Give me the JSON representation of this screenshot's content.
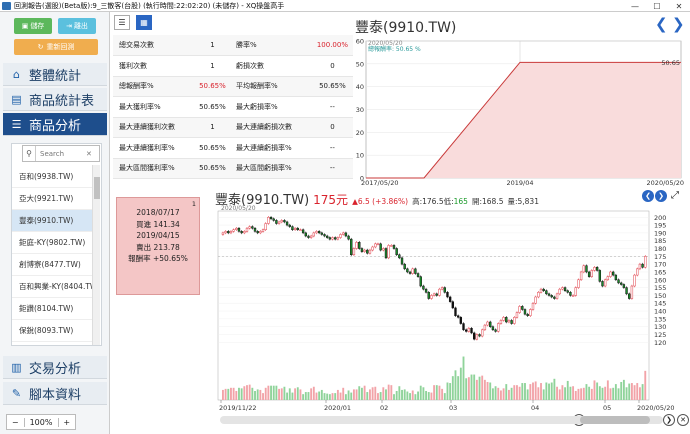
{
  "window": {
    "title": "回測報告(選股)(Beta版):9_三散客(台股) (執行時間:22:02:20) (未儲存) - XQ操盤高手",
    "controls": [
      "—",
      "☐",
      "✕"
    ]
  },
  "sidebar": {
    "save_label": "儲存",
    "exit_label": "離出",
    "reset_label": "重新回測",
    "nav": [
      {
        "label": "整體統計",
        "icon": "home-icon"
      },
      {
        "label": "商品統計表",
        "icon": "book-icon"
      },
      {
        "label": "商品分析",
        "icon": "list-icon"
      },
      {
        "label": "交易分析",
        "icon": "bar-chart-icon"
      },
      {
        "label": "腳本資料",
        "icon": "pencil-icon"
      }
    ],
    "search_placeholder": "Search",
    "stocks": [
      "百和(9938.TW)",
      "亞大(9921.TW)",
      "豐泰(9910.TW)",
      "鉅庭-KY(9802.TW)",
      "創博寮(8477.TW)",
      "百和興業-KY(8404.TW)",
      "鉅讚(8104.TW)",
      "保銳(8093.TW)"
    ],
    "selected_index": 2,
    "zoom_minus": "−",
    "zoom_value": "100%",
    "zoom_plus": "+"
  },
  "stats": [
    [
      "總交易次數",
      "1",
      "勝率%",
      "100.00%"
    ],
    [
      "獲利次數",
      "1",
      "虧損次數",
      "0"
    ],
    [
      "總報酬率%",
      "50.65%",
      "平均報酬率%",
      "50.65%"
    ],
    [
      "最大獲利率%",
      "50.65%",
      "最大虧損率%",
      "--"
    ],
    [
      "最大連續獲利次數",
      "1",
      "最大連續虧損次數",
      "0"
    ],
    [
      "最大連續獲利率%",
      "50.65%",
      "最大連續虧損率%",
      "--"
    ],
    [
      "最大區間獲利率%",
      "50.65%",
      "最大區間虧損率%",
      "--"
    ]
  ],
  "equity": {
    "title": "豐泰(9910.TW)",
    "date_label": "2020/05/20",
    "legend": "總報酬率: 50.65 %",
    "end_value_label": "50.65",
    "xticks": [
      "2017/05/20",
      "2019/04",
      "2020/05/20"
    ],
    "yticks": [
      "0",
      "10",
      "20",
      "30",
      "40",
      "50",
      "60"
    ]
  },
  "trade": {
    "count": "1",
    "buy_date": "2018/07/17",
    "buy_text": "買進 141.34",
    "sell_date": "2019/04/15",
    "sell_text": "賣出 213.78",
    "return_text": "報酬率 +50.65%"
  },
  "quote": {
    "name": "豐泰(9910.TW)",
    "price": "175元",
    "change": "▲6.5 (+3.86%)",
    "high": "高:176.5",
    "low_label": "低:",
    "low_value": "165",
    "open": "開:168.5",
    "volume": "量:5,831"
  },
  "chart_data": [
    {
      "type": "line",
      "title": "",
      "x": [
        "2017/05/20",
        "2018/07/17",
        "2019/04/15",
        "2020/05/20"
      ],
      "series": [
        {
          "name": "總報酬率",
          "values": [
            0,
            0,
            50.65,
            50.65
          ]
        }
      ],
      "ylim": [
        0,
        60
      ],
      "xlabel": "",
      "ylabel": ""
    },
    {
      "type": "candlestick",
      "title": "",
      "date_label": "2020/05/20",
      "xticks": [
        "2019/11/22",
        "2020/01",
        "02",
        "03",
        "04",
        "05",
        "2020/05/20"
      ],
      "yticks": [
        120,
        125,
        130,
        135,
        140,
        145,
        150,
        155,
        160,
        165,
        170,
        175,
        180,
        185,
        190,
        195,
        200
      ],
      "ylim": [
        117,
        204
      ],
      "last_close": 175,
      "closes": [
        190,
        191,
        190,
        191,
        192,
        193,
        191,
        190,
        191,
        193,
        194,
        193,
        191,
        190,
        191,
        192,
        196,
        200,
        199,
        198,
        196,
        197,
        198,
        197,
        195,
        194,
        192,
        193,
        192,
        192,
        190,
        188,
        187,
        188,
        190,
        191,
        190,
        189,
        188,
        187,
        186,
        187,
        186,
        187,
        189,
        190,
        188,
        186,
        176,
        180,
        184,
        180,
        178,
        179,
        177,
        179,
        181,
        183,
        183,
        179,
        180,
        174,
        182,
        182,
        180,
        176,
        174,
        170,
        167,
        165,
        164,
        167,
        164,
        162,
        156,
        154,
        152,
        148,
        150,
        151,
        150,
        154,
        155,
        152,
        149,
        146,
        142,
        137,
        136,
        132,
        128,
        127,
        129,
        126,
        122,
        125,
        124,
        128,
        131,
        133,
        130,
        128,
        127,
        132,
        134,
        136,
        133,
        134,
        132,
        136,
        139,
        143,
        141,
        138,
        137,
        141,
        145,
        149,
        152,
        154,
        153,
        151,
        150,
        149,
        148,
        151,
        154,
        155,
        153,
        152,
        150,
        150,
        155,
        160,
        165,
        169,
        165,
        162,
        166,
        168,
        166,
        159,
        156,
        160,
        162,
        165,
        163,
        160,
        158,
        157,
        155,
        151,
        148,
        156,
        163,
        167,
        170,
        168,
        175
      ],
      "volume_fraction": [
        0.19,
        0.21,
        0.21,
        0.23,
        0.23,
        0.17,
        0.23,
        0.22,
        0.26,
        0.28,
        0.29,
        0.23,
        0.17,
        0.2,
        0.19,
        0.13,
        0.23,
        0.27,
        0.27,
        0.27,
        0.27,
        0.21,
        0.22,
        0.25,
        0.14,
        0.22,
        0.14,
        0.22,
        0.24,
        0.2,
        0.11,
        0.15,
        0.15,
        0.22,
        0.25,
        0.14,
        0.16,
        0.19,
        0.13,
        0.12,
        0.11,
        0.13,
        0.13,
        0.19,
        0.14,
        0.23,
        0.11,
        0.18,
        0.14,
        0.2,
        0.2,
        0.26,
        0.23,
        0.27,
        0.15,
        0.2,
        0.24,
        0.25,
        0.13,
        0.15,
        0.24,
        0.2,
        0.29,
        0.28,
        0.11,
        0.17,
        0.26,
        0.19,
        0.2,
        0.16,
        0.13,
        0.18,
        0.11,
        0.16,
        0.27,
        0.24,
        0.17,
        0.15,
        0.14,
        0.28,
        0.28,
        0.27,
        0.21,
        0.13,
        0.33,
        0.32,
        0.45,
        0.56,
        0.45,
        0.61,
        0.82,
        0.41,
        0.43,
        0.48,
        0.48,
        0.38,
        0.44,
        0.46,
        0.38,
        0.34,
        0.33,
        0.22,
        0.26,
        0.23,
        0.18,
        0.22,
        0.3,
        0.19,
        0.23,
        0.28,
        0.28,
        0.25,
        0.32,
        0.32,
        0.2,
        0.3,
        0.33,
        0.35,
        0.24,
        0.32,
        0.2,
        0.33,
        0.31,
        0.33,
        0.4,
        0.25,
        0.2,
        0.28,
        0.24,
        0.36,
        0.25,
        0.26,
        0.17,
        0.21,
        0.22,
        0.23,
        0.3,
        0.25,
        0.21,
        0.37,
        0.33,
        0.26,
        0.23,
        0.25,
        0.37,
        0.22,
        0.23,
        0.3,
        0.22,
        0.34,
        0.38,
        0.24,
        0.31,
        0.32,
        0.28,
        0.32,
        0.24,
        0.3,
        0.55
      ]
    }
  ]
}
